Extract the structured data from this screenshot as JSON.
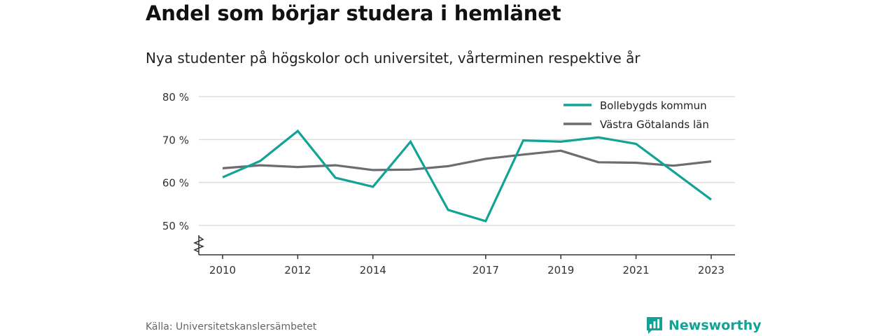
{
  "header": {
    "title": "Andel som börjar studera i hemlänet",
    "subtitle": "Nya studenter på högskolor och universitet, vårterminen respektive år"
  },
  "footer": {
    "source": "Källa: Universitetskanslersämbetet",
    "brand": "Newsworthy"
  },
  "colors": {
    "series_1": "#11a396",
    "series_2": "#6d6c72",
    "grid": "#dddddd",
    "brand": "#11a396"
  },
  "chart_data": {
    "type": "line",
    "title": "Andel som börjar studera i hemlänet",
    "subtitle": "Nya studenter på högskolor och universitet, vårterminen respektive år",
    "x": [
      2010,
      2011,
      2012,
      2013,
      2014,
      2015,
      2016,
      2017,
      2018,
      2019,
      2020,
      2021,
      2022,
      2023
    ],
    "xticks": [
      2010,
      2012,
      2014,
      2017,
      2019,
      2021,
      2023
    ],
    "xlim": [
      2009.8,
      2023.3
    ],
    "yticks": [
      50,
      60,
      70,
      80
    ],
    "ytick_labels": [
      "50 %",
      "60 %",
      "70 %",
      "80 %"
    ],
    "ylim": [
      43.5,
      80
    ],
    "y_axis_break": true,
    "grid": true,
    "legend_position": "top-right",
    "series": [
      {
        "name": "Bollebygds kommun",
        "values": [
          61.2,
          65.0,
          72.0,
          61.1,
          59.0,
          69.5,
          53.6,
          51.0,
          69.8,
          69.5,
          70.5,
          69.0,
          62.5,
          56.0
        ]
      },
      {
        "name": "Västra Götalands län",
        "values": [
          63.3,
          64.0,
          63.6,
          64.0,
          62.9,
          63.0,
          63.8,
          65.5,
          66.5,
          67.4,
          64.7,
          64.6,
          63.9,
          64.9
        ]
      }
    ]
  }
}
